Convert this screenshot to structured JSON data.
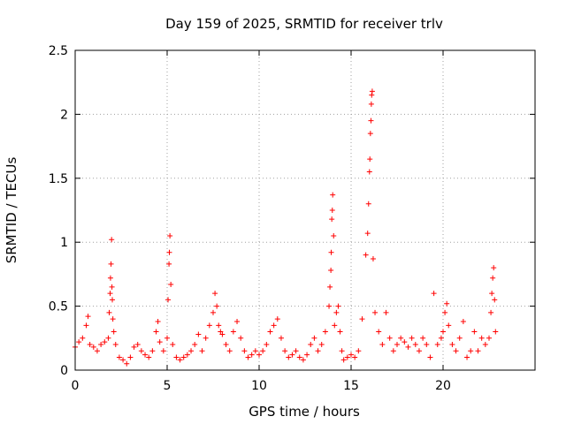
{
  "chart_data": {
    "type": "scatter",
    "title": "Day 159 of 2025, SRMTID for receiver trlv",
    "xlabel": "GPS time / hours",
    "ylabel": "SRMTID / TECUs",
    "xlim": [
      0,
      25
    ],
    "ylim": [
      0,
      2.5
    ],
    "xticks": [
      0,
      5,
      10,
      15,
      20
    ],
    "yticks": [
      0,
      0.5,
      1,
      1.5,
      2,
      2.5
    ],
    "xtick_labels": [
      "0",
      "5",
      "10",
      "15",
      "20"
    ],
    "ytick_labels": [
      "0",
      "0.5",
      "1",
      "1.5",
      "2",
      "2.5"
    ],
    "grid": true,
    "marker": "+",
    "series": [
      {
        "name": "SRMTID",
        "color": "#ff0000",
        "x": [
          0.0,
          0.2,
          0.4,
          0.6,
          0.7,
          0.8,
          1.0,
          1.2,
          1.4,
          1.6,
          1.8,
          1.85,
          1.9,
          1.92,
          1.95,
          1.98,
          2.0,
          2.02,
          2.05,
          2.1,
          2.2,
          2.4,
          2.6,
          2.8,
          3.0,
          3.2,
          3.4,
          3.6,
          3.8,
          4.0,
          4.2,
          4.4,
          4.5,
          4.6,
          4.8,
          5.0,
          5.05,
          5.1,
          5.12,
          5.15,
          5.2,
          5.3,
          5.5,
          5.7,
          5.9,
          6.1,
          6.3,
          6.5,
          6.7,
          6.9,
          7.1,
          7.3,
          7.5,
          7.6,
          7.7,
          7.8,
          7.9,
          8.0,
          8.2,
          8.4,
          8.6,
          8.8,
          9.0,
          9.2,
          9.4,
          9.6,
          9.8,
          10.0,
          10.2,
          10.4,
          10.6,
          10.8,
          11.0,
          11.2,
          11.4,
          11.6,
          11.8,
          12.0,
          12.2,
          12.4,
          12.6,
          12.8,
          13.0,
          13.2,
          13.4,
          13.6,
          13.8,
          13.85,
          13.9,
          13.92,
          13.95,
          13.98,
          14.0,
          14.05,
          14.1,
          14.2,
          14.3,
          14.4,
          14.5,
          14.6,
          14.8,
          15.0,
          15.2,
          15.4,
          15.6,
          15.8,
          15.9,
          15.95,
          16.0,
          16.02,
          16.05,
          16.08,
          16.1,
          16.12,
          16.15,
          16.2,
          16.3,
          16.5,
          16.7,
          16.9,
          17.1,
          17.3,
          17.5,
          17.7,
          17.9,
          18.1,
          18.3,
          18.5,
          18.7,
          18.9,
          19.1,
          19.3,
          19.5,
          19.7,
          19.9,
          20.0,
          20.1,
          20.2,
          20.3,
          20.5,
          20.7,
          20.9,
          21.1,
          21.3,
          21.5,
          21.7,
          21.9,
          22.1,
          22.3,
          22.5,
          22.6,
          22.65,
          22.7,
          22.75,
          22.8,
          22.85
        ],
        "y": [
          0.18,
          0.22,
          0.25,
          0.35,
          0.42,
          0.2,
          0.18,
          0.15,
          0.2,
          0.22,
          0.25,
          0.45,
          0.6,
          0.72,
          0.83,
          1.02,
          0.65,
          0.55,
          0.4,
          0.3,
          0.2,
          0.1,
          0.08,
          0.05,
          0.1,
          0.18,
          0.2,
          0.15,
          0.12,
          0.1,
          0.15,
          0.3,
          0.38,
          0.22,
          0.15,
          0.25,
          0.55,
          0.83,
          0.92,
          1.05,
          0.67,
          0.2,
          0.1,
          0.08,
          0.1,
          0.12,
          0.15,
          0.2,
          0.28,
          0.15,
          0.25,
          0.35,
          0.45,
          0.6,
          0.5,
          0.35,
          0.3,
          0.28,
          0.2,
          0.15,
          0.3,
          0.38,
          0.25,
          0.15,
          0.1,
          0.12,
          0.15,
          0.12,
          0.15,
          0.2,
          0.3,
          0.35,
          0.4,
          0.25,
          0.15,
          0.1,
          0.12,
          0.15,
          0.1,
          0.08,
          0.12,
          0.2,
          0.25,
          0.15,
          0.2,
          0.3,
          0.5,
          0.65,
          0.78,
          0.92,
          1.18,
          1.25,
          1.37,
          1.05,
          0.35,
          0.45,
          0.5,
          0.3,
          0.15,
          0.08,
          0.1,
          0.12,
          0.1,
          0.15,
          0.4,
          0.9,
          1.07,
          1.3,
          1.55,
          1.65,
          1.85,
          1.95,
          2.08,
          2.15,
          2.18,
          0.87,
          0.45,
          0.3,
          0.2,
          0.45,
          0.25,
          0.15,
          0.2,
          0.25,
          0.22,
          0.18,
          0.25,
          0.2,
          0.15,
          0.25,
          0.2,
          0.1,
          0.6,
          0.2,
          0.25,
          0.3,
          0.45,
          0.52,
          0.35,
          0.2,
          0.15,
          0.25,
          0.38,
          0.1,
          0.15,
          0.3,
          0.15,
          0.25,
          0.2,
          0.25,
          0.45,
          0.6,
          0.72,
          0.8,
          0.55,
          0.3
        ]
      }
    ]
  }
}
